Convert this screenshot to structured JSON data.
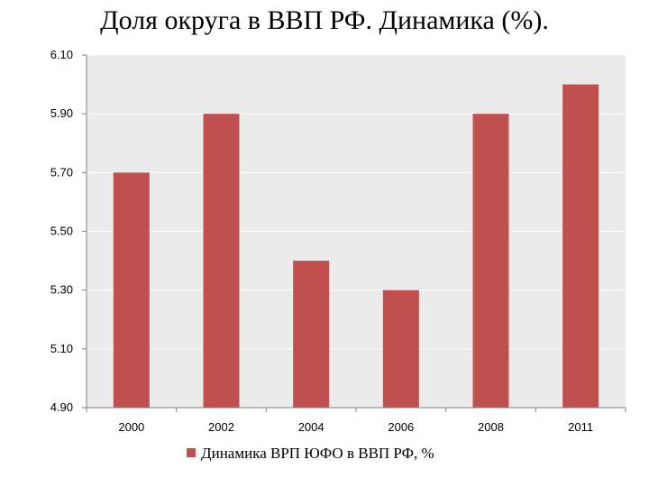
{
  "title": "Доля округа в ВВП РФ. Динамика (%).",
  "colors": {
    "bar": "#C0504D",
    "plot_background": "#EBEBEB",
    "grid": "#FFFFFF",
    "axis": "#808080"
  },
  "chart_data": {
    "type": "bar",
    "title": "Доля округа в ВВП РФ. Динамика (%).",
    "categories": [
      "2000",
      "2002",
      "2004",
      "2006",
      "2008",
      "2011"
    ],
    "series": [
      {
        "name": "Динамика ВРП ЮФО в ВВП РФ, %",
        "values": [
          5.7,
          5.9,
          5.4,
          5.3,
          5.9,
          6.0
        ]
      }
    ],
    "ylim": [
      4.9,
      6.1
    ],
    "yticks": [
      "4.90",
      "5.10",
      "5.30",
      "5.50",
      "5.70",
      "5.90",
      "6.10"
    ],
    "grid": true,
    "legend_position": "bottom",
    "xlabel": "",
    "ylabel": ""
  }
}
